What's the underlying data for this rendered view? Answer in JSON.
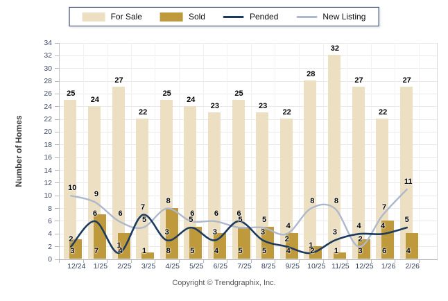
{
  "legend": {
    "items": [
      {
        "label": "For Sale",
        "swatch": "box",
        "color": "#ecdfc2"
      },
      {
        "label": "Sold",
        "swatch": "box",
        "color": "#be9a3d"
      },
      {
        "label": "Pended",
        "swatch": "line",
        "color": "#1b3a5e"
      },
      {
        "label": "New Listing",
        "swatch": "line",
        "color": "#aeb8cc"
      }
    ]
  },
  "ylabel": "Number of Homes",
  "footer": "Copyright © Trendgraphix, Inc.",
  "colors": {
    "for_sale": "#ecdfc2",
    "sold": "#be9a3d",
    "pended": "#1b3a5e",
    "new_listing": "#aeb8cc",
    "grid": "#e9e9e9",
    "axis_text": "#3d4961"
  },
  "chart_data": {
    "type": "bar",
    "subtype": "bar+line combo",
    "categories": [
      "12/24",
      "1/25",
      "2/25",
      "3/25",
      "4/25",
      "5/25",
      "6/25",
      "7/25",
      "8/25",
      "9/25",
      "10/25",
      "11/25",
      "12/25",
      "1/26",
      "2/26"
    ],
    "series": [
      {
        "name": "For Sale",
        "type": "bar",
        "color": "#ecdfc2",
        "values": [
          25,
          24,
          27,
          22,
          25,
          24,
          23,
          25,
          23,
          22,
          28,
          32,
          27,
          22,
          27
        ]
      },
      {
        "name": "Sold",
        "type": "bar",
        "color": "#be9a3d",
        "values": [
          3,
          7,
          4,
          1,
          8,
          5,
          4,
          5,
          5,
          4,
          2,
          1,
          3,
          6,
          4
        ]
      },
      {
        "name": "Pended",
        "type": "line",
        "color": "#1b3a5e",
        "values": [
          2,
          6,
          1,
          7,
          3,
          5,
          3,
          6,
          3,
          2,
          1,
          3,
          4,
          4,
          5
        ]
      },
      {
        "name": "New Listing",
        "type": "line",
        "color": "#aeb8cc",
        "values": [
          10,
          9,
          6,
          5,
          8,
          6,
          6,
          5,
          5,
          4,
          8,
          8,
          2,
          7,
          11
        ]
      }
    ],
    "title": "",
    "xlabel": "",
    "ylabel": "Number of Homes",
    "ylim": [
      0,
      34
    ],
    "ytick_step": 2,
    "grid": true,
    "legend_position": "top",
    "data_labels": true
  }
}
